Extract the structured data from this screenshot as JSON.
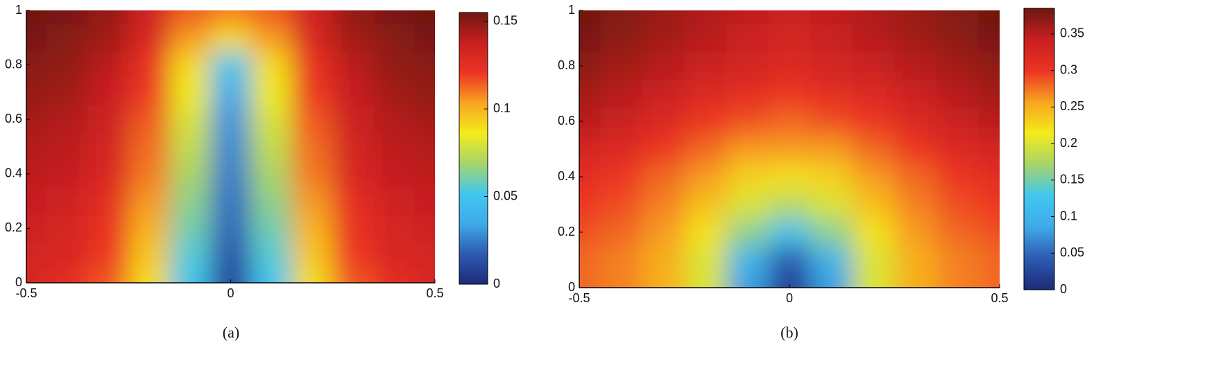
{
  "chart_data": [
    {
      "type": "heatmap",
      "caption": "(a)",
      "x": [
        -0.5,
        -0.4,
        -0.3,
        -0.2,
        -0.1,
        0,
        0.1,
        0.2,
        0.3,
        0.4,
        0.5
      ],
      "y": [
        0,
        0.1,
        0.2,
        0.3,
        0.4,
        0.5,
        0.6,
        0.7,
        0.8,
        0.9,
        1
      ],
      "z": [
        [
          0.13,
          0.125,
          0.115,
          0.09,
          0.05,
          0.01,
          0.05,
          0.09,
          0.115,
          0.125,
          0.13
        ],
        [
          0.133,
          0.13,
          0.12,
          0.095,
          0.055,
          0.015,
          0.055,
          0.095,
          0.12,
          0.13,
          0.133
        ],
        [
          0.135,
          0.132,
          0.122,
          0.1,
          0.06,
          0.02,
          0.06,
          0.1,
          0.122,
          0.132,
          0.135
        ],
        [
          0.138,
          0.135,
          0.125,
          0.105,
          0.065,
          0.022,
          0.065,
          0.105,
          0.125,
          0.135,
          0.138
        ],
        [
          0.14,
          0.138,
          0.13,
          0.11,
          0.07,
          0.025,
          0.07,
          0.11,
          0.13,
          0.138,
          0.14
        ],
        [
          0.142,
          0.14,
          0.133,
          0.112,
          0.075,
          0.027,
          0.075,
          0.112,
          0.133,
          0.14,
          0.142
        ],
        [
          0.145,
          0.142,
          0.135,
          0.115,
          0.08,
          0.03,
          0.08,
          0.115,
          0.135,
          0.142,
          0.145
        ],
        [
          0.148,
          0.145,
          0.138,
          0.12,
          0.085,
          0.035,
          0.085,
          0.12,
          0.138,
          0.145,
          0.148
        ],
        [
          0.15,
          0.148,
          0.14,
          0.122,
          0.09,
          0.05,
          0.09,
          0.122,
          0.14,
          0.148,
          0.15
        ],
        [
          0.153,
          0.15,
          0.145,
          0.13,
          0.105,
          0.09,
          0.105,
          0.13,
          0.145,
          0.15,
          0.153
        ],
        [
          0.155,
          0.153,
          0.148,
          0.135,
          0.115,
          0.11,
          0.115,
          0.135,
          0.148,
          0.153,
          0.155
        ]
      ],
      "xlim": [
        -0.5,
        0.5
      ],
      "ylim": [
        0,
        1
      ],
      "xticks": [
        -0.5,
        0,
        0.5
      ],
      "yticks": [
        0,
        0.2,
        0.4,
        0.6,
        0.8,
        1
      ],
      "clim": [
        0,
        0.155
      ],
      "cticks": [
        0,
        0.05,
        0.1,
        0.15
      ],
      "colormap": [
        "#1c2b78",
        "#2c5bb0",
        "#3fa9e8",
        "#41c8ef",
        "#a6d46b",
        "#f3ec1a",
        "#f8a420",
        "#ec3424",
        "#c81f20",
        "#6e1810"
      ]
    },
    {
      "type": "heatmap",
      "caption": "(b)",
      "x": [
        -0.5,
        -0.4,
        -0.3,
        -0.2,
        -0.1,
        0,
        0.1,
        0.2,
        0.3,
        0.4,
        0.5
      ],
      "y": [
        0,
        0.1,
        0.2,
        0.3,
        0.4,
        0.5,
        0.6,
        0.7,
        0.8,
        0.9,
        1
      ],
      "z": [
        [
          0.28,
          0.27,
          0.25,
          0.2,
          0.08,
          0.02,
          0.08,
          0.2,
          0.25,
          0.27,
          0.28
        ],
        [
          0.28,
          0.27,
          0.25,
          0.2,
          0.1,
          0.04,
          0.1,
          0.2,
          0.25,
          0.27,
          0.28
        ],
        [
          0.29,
          0.28,
          0.26,
          0.22,
          0.16,
          0.12,
          0.16,
          0.22,
          0.26,
          0.28,
          0.29
        ],
        [
          0.3,
          0.29,
          0.27,
          0.24,
          0.2,
          0.18,
          0.2,
          0.24,
          0.27,
          0.29,
          0.3
        ],
        [
          0.31,
          0.3,
          0.28,
          0.26,
          0.23,
          0.22,
          0.23,
          0.26,
          0.28,
          0.3,
          0.31
        ],
        [
          0.33,
          0.32,
          0.3,
          0.28,
          0.26,
          0.26,
          0.26,
          0.28,
          0.3,
          0.32,
          0.33
        ],
        [
          0.35,
          0.34,
          0.32,
          0.3,
          0.29,
          0.28,
          0.29,
          0.3,
          0.32,
          0.34,
          0.35
        ],
        [
          0.36,
          0.35,
          0.34,
          0.32,
          0.31,
          0.3,
          0.31,
          0.32,
          0.34,
          0.35,
          0.36
        ],
        [
          0.37,
          0.36,
          0.35,
          0.34,
          0.33,
          0.32,
          0.33,
          0.34,
          0.35,
          0.36,
          0.37
        ],
        [
          0.38,
          0.37,
          0.36,
          0.35,
          0.34,
          0.33,
          0.34,
          0.35,
          0.36,
          0.37,
          0.38
        ],
        [
          0.385,
          0.375,
          0.365,
          0.355,
          0.345,
          0.34,
          0.345,
          0.355,
          0.365,
          0.375,
          0.385
        ]
      ],
      "xlim": [
        -0.5,
        0.5
      ],
      "ylim": [
        0,
        1
      ],
      "xticks": [
        -0.5,
        0,
        0.5
      ],
      "yticks": [
        0,
        0.2,
        0.4,
        0.6,
        0.8,
        1
      ],
      "clim": [
        0,
        0.385
      ],
      "cticks": [
        0,
        0.05,
        0.1,
        0.15,
        0.2,
        0.25,
        0.3,
        0.35
      ],
      "colormap": [
        "#1c2b78",
        "#2c5bb0",
        "#3fa9e8",
        "#41c8ef",
        "#a6d46b",
        "#f3ec1a",
        "#f8a420",
        "#ec3424",
        "#c81f20",
        "#6e1810"
      ]
    }
  ]
}
